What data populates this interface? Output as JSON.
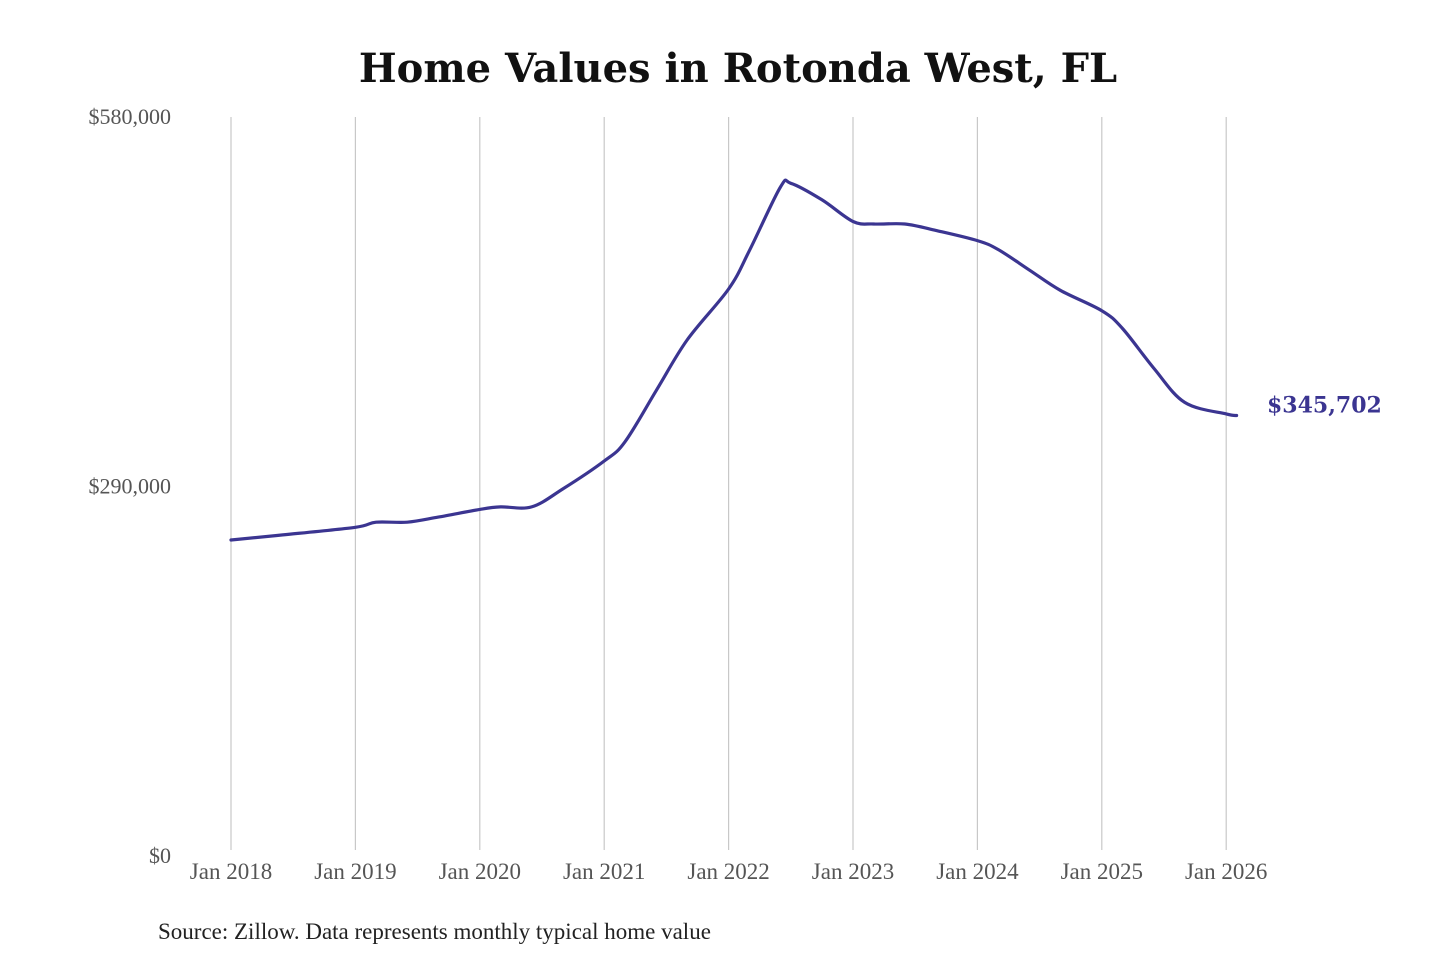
{
  "chart_data": {
    "type": "line",
    "title": "Home Values in Rotonda West, FL",
    "xlabel": "",
    "ylabel": "",
    "ylim": [
      0,
      580000
    ],
    "y_ticks": [
      0,
      290000,
      580000
    ],
    "y_tick_labels": [
      "$0",
      "$290,000",
      "$580,000"
    ],
    "x_ticks": [
      "2018-01",
      "2019-01",
      "2020-01",
      "2021-01",
      "2022-01",
      "2023-01",
      "2024-01",
      "2025-01",
      "2026-01"
    ],
    "x_tick_labels": [
      "Jan 2018",
      "Jan 2019",
      "Jan 2020",
      "Jan 2021",
      "Jan 2022",
      "Jan 2023",
      "Jan 2024",
      "Jan 2025",
      "Jan 2026"
    ],
    "grid": "vertical",
    "line_color": "#3b3591",
    "end_label": "$345,702",
    "series": [
      {
        "x": [
          "2018-01",
          "2018-06",
          "2019-01",
          "2019-03",
          "2019-06",
          "2019-09",
          "2020-01",
          "2020-03",
          "2020-06",
          "2020-09",
          "2021-01",
          "2021-03",
          "2021-06",
          "2021-09",
          "2022-01",
          "2022-03",
          "2022-06",
          "2022-07",
          "2022-10",
          "2023-01",
          "2023-03",
          "2023-06",
          "2023-09",
          "2024-01",
          "2024-03",
          "2024-06",
          "2024-09",
          "2025-01",
          "2025-03",
          "2025-06",
          "2025-09",
          "2026-01",
          "2026-02"
        ],
        "values": [
          248000,
          252000,
          258000,
          262000,
          262000,
          266000,
          272000,
          274000,
          274000,
          288000,
          310000,
          325000,
          365000,
          405000,
          445000,
          475000,
          525000,
          528000,
          515000,
          498000,
          496000,
          496000,
          491000,
          483000,
          476000,
          460000,
          444000,
          428000,
          414000,
          383000,
          356000,
          347000,
          345702
        ]
      }
    ]
  },
  "source": "Source: Zillow. Data represents monthly typical home value"
}
